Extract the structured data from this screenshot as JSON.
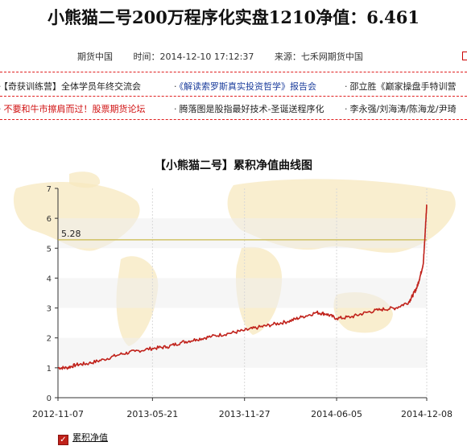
{
  "headline": "小熊猫二号200万程序化实盘1210净值：6.461",
  "meta": {
    "source": "期货中国",
    "time": "时间：2014-12-10 17:12:37",
    "origin": "来源：七禾网期货中国"
  },
  "news": {
    "row1": [
      {
        "text": "【奇获训练营】全体学员年终交流会",
        "color": "dark"
      },
      {
        "text": "《解读索罗斯真实投资哲学》报告会",
        "color": "blue"
      },
      {
        "text": "邵立胜《巅家操盘手特训营",
        "color": "dark"
      }
    ],
    "row2": [
      {
        "text": "不要和牛市擦肩而过！股票期货论坛",
        "color": "red"
      },
      {
        "text": "腾落图是股指最好技术-圣诞送程序化",
        "color": "dark"
      },
      {
        "text": "李永强/刘海涛/陈海龙/尹琦",
        "color": "dark"
      }
    ]
  },
  "chart_data": {
    "type": "line",
    "title": "【小熊猫二号】累积净值曲线图",
    "xlabel": "",
    "ylabel": "",
    "x_ticks": [
      "2012-11-07",
      "2013-05-21",
      "2013-11-27",
      "2014-06-05",
      "2014-12-08"
    ],
    "ylim": [
      0,
      7
    ],
    "y_ticks": [
      "0",
      "1",
      "2",
      "3",
      "4",
      "5",
      "6",
      "7"
    ],
    "grid": "horizontal-bands",
    "reference_line": {
      "value": 5.28,
      "label": "5.28"
    },
    "series": [
      {
        "name": "累积净值",
        "color": "#c0211a",
        "points": [
          [
            "2012-11-07",
            1.0
          ],
          [
            "2012-11-25",
            1.0
          ],
          [
            "2012-12-15",
            1.1
          ],
          [
            "2013-01-10",
            1.15
          ],
          [
            "2013-02-10",
            1.28
          ],
          [
            "2013-03-15",
            1.45
          ],
          [
            "2013-04-15",
            1.55
          ],
          [
            "2013-05-21",
            1.65
          ],
          [
            "2013-06-20",
            1.7
          ],
          [
            "2013-07-20",
            1.85
          ],
          [
            "2013-08-20",
            1.95
          ],
          [
            "2013-09-20",
            2.05
          ],
          [
            "2013-10-25",
            2.15
          ],
          [
            "2013-11-27",
            2.25
          ],
          [
            "2013-12-25",
            2.35
          ],
          [
            "2014-01-25",
            2.45
          ],
          [
            "2014-02-25",
            2.55
          ],
          [
            "2014-03-25",
            2.7
          ],
          [
            "2014-04-25",
            2.85
          ],
          [
            "2014-05-15",
            2.8
          ],
          [
            "2014-06-05",
            2.65
          ],
          [
            "2014-07-05",
            2.7
          ],
          [
            "2014-08-05",
            2.85
          ],
          [
            "2014-09-05",
            2.95
          ],
          [
            "2014-10-05",
            3.0
          ],
          [
            "2014-11-01",
            3.2
          ],
          [
            "2014-11-10",
            3.45
          ],
          [
            "2014-11-18",
            3.7
          ],
          [
            "2014-11-25",
            4.1
          ],
          [
            "2014-12-01",
            4.5
          ],
          [
            "2014-12-04",
            5.3
          ],
          [
            "2014-12-06",
            5.9
          ],
          [
            "2014-12-08",
            6.46
          ]
        ]
      }
    ],
    "legend": {
      "label": "累积净值",
      "position": "bottom-left",
      "checked": "✓"
    }
  }
}
